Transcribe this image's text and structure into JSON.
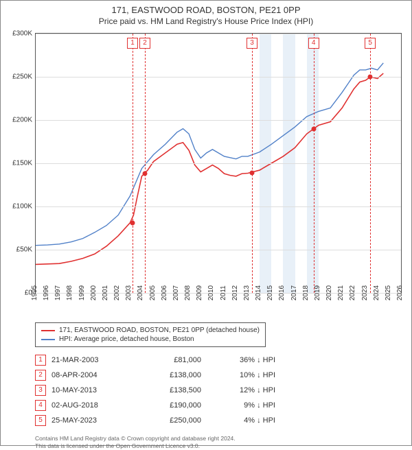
{
  "title": "171, EASTWOOD ROAD, BOSTON, PE21 0PP",
  "subtitle": "Price paid vs. HM Land Registry's House Price Index (HPI)",
  "chart": {
    "type": "line",
    "background_color": "#ffffff",
    "grid_color": "#dddddd",
    "band_color": "#e8f0f8",
    "border_color": "#555555",
    "y": {
      "min": 0,
      "max": 300000,
      "ticks": [
        0,
        50000,
        100000,
        150000,
        200000,
        250000,
        300000
      ],
      "labels": [
        "£0",
        "£50K",
        "£100K",
        "£150K",
        "£200K",
        "£250K",
        "£300K"
      ],
      "fontsize": 10
    },
    "x": {
      "min": 1995,
      "max": 2026,
      "ticks": [
        1995,
        1996,
        1997,
        1998,
        1999,
        2000,
        2001,
        2002,
        2003,
        2004,
        2005,
        2006,
        2007,
        2008,
        2009,
        2010,
        2011,
        2012,
        2013,
        2014,
        2015,
        2016,
        2017,
        2018,
        2019,
        2020,
        2021,
        2022,
        2023,
        2024,
        2025,
        2026
      ],
      "fontsize": 10
    },
    "bands": [
      {
        "from": 2014,
        "to": 2015
      },
      {
        "from": 2016,
        "to": 2017
      },
      {
        "from": 2018,
        "to": 2019
      }
    ],
    "series": [
      {
        "name": "property",
        "label": "171, EASTWOOD ROAD, BOSTON, PE21 0PP (detached house)",
        "color": "#e03030",
        "line_width": 1.6,
        "data": [
          [
            1995,
            33000
          ],
          [
            1996,
            33500
          ],
          [
            1997,
            34000
          ],
          [
            1998,
            36500
          ],
          [
            1999,
            40000
          ],
          [
            2000,
            45000
          ],
          [
            2001,
            54000
          ],
          [
            2002,
            66000
          ],
          [
            2003,
            81000
          ],
          [
            2003.3,
            90000
          ],
          [
            2003.6,
            110000
          ],
          [
            2004,
            135000
          ],
          [
            2004.5,
            142000
          ],
          [
            2005,
            152000
          ],
          [
            2006,
            162000
          ],
          [
            2007,
            172000
          ],
          [
            2007.5,
            174000
          ],
          [
            2008,
            165000
          ],
          [
            2008.5,
            148000
          ],
          [
            2009,
            140000
          ],
          [
            2009.5,
            144000
          ],
          [
            2010,
            148000
          ],
          [
            2010.5,
            144000
          ],
          [
            2011,
            138000
          ],
          [
            2011.5,
            136000
          ],
          [
            2012,
            135000
          ],
          [
            2012.5,
            138000
          ],
          [
            2013,
            138500
          ],
          [
            2014,
            142000
          ],
          [
            2015,
            150000
          ],
          [
            2016,
            158000
          ],
          [
            2017,
            168000
          ],
          [
            2018,
            184000
          ],
          [
            2018.6,
            190000
          ],
          [
            2019,
            194000
          ],
          [
            2020,
            198000
          ],
          [
            2021,
            214000
          ],
          [
            2022,
            236000
          ],
          [
            2022.5,
            244000
          ],
          [
            2023,
            246000
          ],
          [
            2023.4,
            250000
          ],
          [
            2024,
            248000
          ],
          [
            2024.5,
            254000
          ]
        ]
      },
      {
        "name": "hpi",
        "label": "HPI: Average price, detached house, Boston",
        "color": "#5080c8",
        "line_width": 1.4,
        "data": [
          [
            1995,
            55000
          ],
          [
            1996,
            55500
          ],
          [
            1997,
            56500
          ],
          [
            1998,
            59000
          ],
          [
            1999,
            63000
          ],
          [
            2000,
            70000
          ],
          [
            2001,
            78000
          ],
          [
            2002,
            90000
          ],
          [
            2003,
            112000
          ],
          [
            2004,
            144000
          ],
          [
            2005,
            160000
          ],
          [
            2006,
            172000
          ],
          [
            2007,
            186000
          ],
          [
            2007.5,
            190000
          ],
          [
            2008,
            184000
          ],
          [
            2008.5,
            166000
          ],
          [
            2009,
            156000
          ],
          [
            2009.5,
            162000
          ],
          [
            2010,
            166000
          ],
          [
            2010.5,
            162000
          ],
          [
            2011,
            158000
          ],
          [
            2012,
            155000
          ],
          [
            2012.5,
            158000
          ],
          [
            2013,
            158000
          ],
          [
            2014,
            163000
          ],
          [
            2015,
            172000
          ],
          [
            2016,
            182000
          ],
          [
            2017,
            192000
          ],
          [
            2018,
            204000
          ],
          [
            2019,
            210000
          ],
          [
            2020,
            214000
          ],
          [
            2021,
            232000
          ],
          [
            2022,
            252000
          ],
          [
            2022.5,
            258000
          ],
          [
            2023,
            258000
          ],
          [
            2023.5,
            260000
          ],
          [
            2024,
            258000
          ],
          [
            2024.5,
            266000
          ]
        ]
      }
    ],
    "markers": [
      {
        "n": 1,
        "x": 2003.22,
        "y": 81000,
        "color": "#e03030"
      },
      {
        "n": 2,
        "x": 2004.27,
        "y": 138000,
        "color": "#e03030"
      },
      {
        "n": 3,
        "x": 2013.36,
        "y": 138500,
        "color": "#e03030"
      },
      {
        "n": 4,
        "x": 2018.58,
        "y": 190000,
        "color": "#e03030"
      },
      {
        "n": 5,
        "x": 2023.39,
        "y": 250000,
        "color": "#e03030"
      }
    ]
  },
  "transactions": [
    {
      "n": 1,
      "date": "21-MAR-2003",
      "price": "£81,000",
      "diff": "36% ↓ HPI"
    },
    {
      "n": 2,
      "date": "08-APR-2004",
      "price": "£138,000",
      "diff": "10% ↓ HPI"
    },
    {
      "n": 3,
      "date": "10-MAY-2013",
      "price": "£138,500",
      "diff": "12% ↓ HPI"
    },
    {
      "n": 4,
      "date": "02-AUG-2018",
      "price": "£190,000",
      "diff": "9% ↓ HPI"
    },
    {
      "n": 5,
      "date": "25-MAY-2023",
      "price": "£250,000",
      "diff": "4% ↓ HPI"
    }
  ],
  "footer_line1": "Contains HM Land Registry data © Crown copyright and database right 2024.",
  "footer_line2": "This data is licensed under the Open Government Licence v3.0."
}
